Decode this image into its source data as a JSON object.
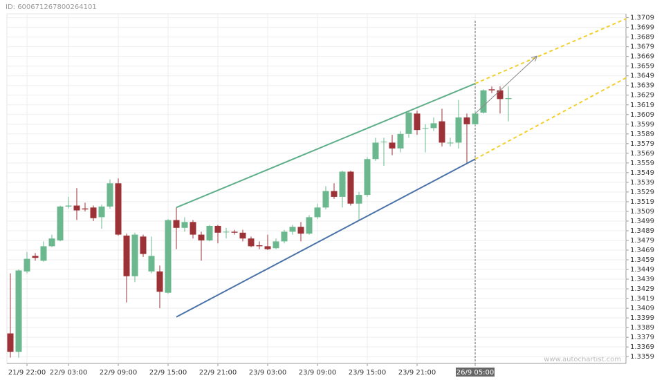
{
  "chart_data": {
    "type": "candlestick",
    "id_label": "ID: 600671267800264101",
    "watermark": "www.autochartist.com",
    "categories": [
      null,
      null,
      "21/9 22:00",
      null,
      null,
      null,
      null,
      "22/9 03:00",
      null,
      null,
      null,
      null,
      null,
      "22/9 09:00",
      null,
      null,
      null,
      null,
      null,
      "22/9 15:00",
      null,
      null,
      null,
      null,
      null,
      "22/9 21:00",
      null,
      null,
      null,
      null,
      null,
      "23/9 03:00",
      null,
      null,
      null,
      null,
      null,
      "23/9 09:00",
      null,
      null,
      null,
      null,
      null,
      "23/9 15:00",
      null,
      null,
      null,
      null,
      null,
      "23/9 21:00",
      null,
      null,
      null,
      null,
      null,
      null,
      "26/9 05:00",
      null,
      null,
      null,
      null
    ],
    "open": [
      1.3383,
      1.3364,
      1.3447,
      1.3463,
      1.3458,
      1.3473,
      1.3479,
      1.3514,
      1.3515,
      1.3512,
      1.3513,
      1.3503,
      1.3514,
      1.3538,
      1.3484,
      1.3442,
      1.3483,
      1.3447,
      1.3447,
      1.3425,
      1.35,
      1.3492,
      1.3498,
      1.3485,
      1.3479,
      1.3494,
      1.3488,
      1.3488,
      1.3487,
      1.3481,
      1.3474,
      1.3473,
      1.3471,
      1.3478,
      1.3488,
      1.3493,
      1.3486,
      1.3503,
      1.3513,
      1.353,
      1.3524,
      1.355,
      1.3517,
      1.3526,
      1.3563,
      1.3581,
      1.358,
      1.3574,
      1.3589,
      1.361,
      1.3595,
      1.3595,
      1.3602,
      1.358,
      1.358,
      1.3606,
      1.3599,
      1.3611,
      1.3635,
      1.3634,
      1.3625
    ],
    "high": [
      1.3445,
      1.3449,
      1.3467,
      1.3466,
      1.3478,
      1.3485,
      1.3515,
      1.3524,
      1.3533,
      1.3518,
      1.3515,
      1.3516,
      1.3542,
      1.3543,
      1.3486,
      1.3487,
      1.3485,
      1.3483,
      1.3453,
      1.3501,
      1.3513,
      1.3503,
      1.35,
      1.3488,
      1.3495,
      1.3495,
      1.3492,
      1.349,
      1.349,
      1.3483,
      1.3478,
      1.3485,
      1.3481,
      1.349,
      1.3495,
      1.3498,
      1.3505,
      1.3517,
      1.3535,
      1.3538,
      1.3551,
      1.3551,
      1.3529,
      1.3565,
      1.3585,
      1.3585,
      1.3588,
      1.3592,
      1.3613,
      1.3613,
      1.3599,
      1.3606,
      1.3615,
      1.3585,
      1.3624,
      1.361,
      1.3613,
      1.3635,
      1.3638,
      1.3638,
      1.3638
    ],
    "low": [
      1.3358,
      1.3358,
      1.3445,
      1.3458,
      1.3457,
      1.3472,
      1.3478,
      1.3512,
      1.35,
      1.3509,
      1.3499,
      1.3491,
      1.3512,
      1.3484,
      1.3415,
      1.3436,
      1.3462,
      1.3445,
      1.3409,
      1.3424,
      1.347,
      1.3488,
      1.3481,
      1.3458,
      1.3478,
      1.3476,
      1.3481,
      1.3485,
      1.3478,
      1.3472,
      1.347,
      1.3469,
      1.347,
      1.3476,
      1.3485,
      1.3478,
      1.3485,
      1.3501,
      1.3511,
      1.3522,
      1.3513,
      1.3515,
      1.35,
      1.3524,
      1.3561,
      1.3556,
      1.3567,
      1.357,
      1.3585,
      1.3588,
      1.357,
      1.3592,
      1.3576,
      1.3576,
      1.3574,
      1.3558,
      1.3598,
      1.361,
      1.3631,
      1.361,
      1.3602
    ],
    "close": [
      1.3364,
      1.3448,
      1.346,
      1.3461,
      1.3473,
      1.3481,
      1.3514,
      1.3515,
      1.351,
      1.3511,
      1.3502,
      1.3514,
      1.3538,
      1.3485,
      1.3442,
      1.3485,
      1.3465,
      1.3463,
      1.3426,
      1.35,
      1.3492,
      1.3498,
      1.3485,
      1.3479,
      1.3494,
      1.3487,
      1.3488,
      1.3487,
      1.3481,
      1.3473,
      1.3473,
      1.347,
      1.3478,
      1.3488,
      1.3493,
      1.3486,
      1.3503,
      1.3513,
      1.353,
      1.3524,
      1.355,
      1.3517,
      1.3526,
      1.3563,
      1.358,
      1.3581,
      1.3574,
      1.3589,
      1.3611,
      1.3593,
      1.3595,
      1.36,
      1.358,
      1.358,
      1.3606,
      1.3599,
      1.361,
      1.3634,
      1.3634,
      1.3625,
      1.3626
    ],
    "up_color": "#6bb88f",
    "down_color": "#9c3236",
    "trendlines": [
      {
        "color": "#5fae8a",
        "dashed": false,
        "points": [
          [
            20,
            1.3513
          ],
          [
            56,
            1.3641
          ]
        ]
      },
      {
        "color": "#4a72a8",
        "dashed": false,
        "points": [
          [
            20,
            1.34
          ],
          [
            56,
            1.3563
          ]
        ]
      },
      {
        "color": "#f2cf2a",
        "dashed": true,
        "points": [
          [
            56,
            1.3641
          ],
          [
            74.2,
            1.3708
          ]
        ]
      },
      {
        "color": "#f2cf2a",
        "dashed": true,
        "points": [
          [
            56,
            1.3563
          ],
          [
            74.2,
            1.3647
          ]
        ]
      },
      {
        "color": "#888888",
        "dashed": false,
        "arrow": true,
        "points": [
          [
            56,
            1.361
          ],
          [
            63.4,
            1.3669
          ]
        ]
      }
    ],
    "ylim": [
      1.3352,
      1.3713
    ],
    "yticks": [
      1.3359,
      1.3369,
      1.3379,
      1.3389,
      1.3399,
      1.3409,
      1.3419,
      1.3429,
      1.3439,
      1.3449,
      1.3459,
      1.3469,
      1.3479,
      1.3489,
      1.3499,
      1.3509,
      1.3519,
      1.3529,
      1.3539,
      1.3549,
      1.3559,
      1.3569,
      1.3579,
      1.3589,
      1.3599,
      1.3609,
      1.3619,
      1.3629,
      1.3639,
      1.3649,
      1.3659,
      1.3669,
      1.3679,
      1.3689,
      1.3699,
      1.3709
    ],
    "grid": true
  }
}
